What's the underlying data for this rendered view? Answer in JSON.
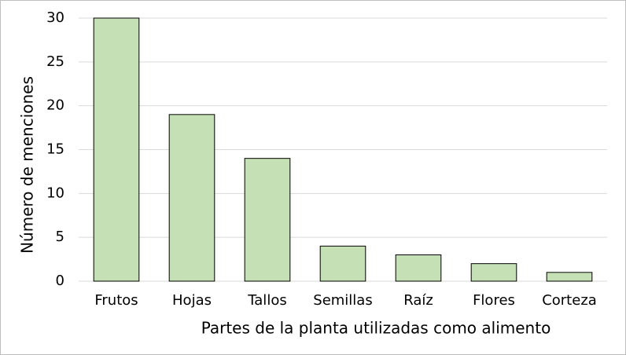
{
  "chart_data": {
    "type": "bar",
    "x_label": "Partes de la planta utilizadas como alimento",
    "y_label": "Número de menciones",
    "categories": [
      "Frutos",
      "Hojas",
      "Tallos",
      "Semillas",
      "Raíz",
      "Flores",
      "Corteza"
    ],
    "values": [
      30,
      19,
      14,
      4,
      3,
      2,
      1
    ],
    "color": "#c5e0b4",
    "ylim": [
      0,
      30
    ],
    "yticks": [
      0,
      5,
      10,
      15,
      20,
      25,
      30
    ],
    "grid": true
  }
}
